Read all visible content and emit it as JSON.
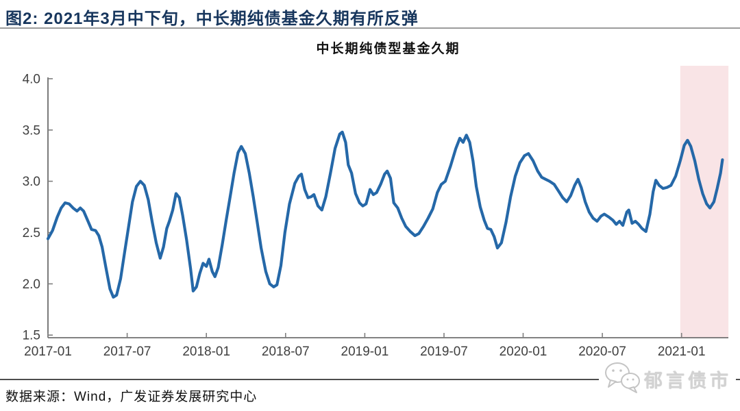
{
  "figure": {
    "caption": "图2:  2021年3月中下旬，中长期纯债基金久期有所反弹"
  },
  "colors": {
    "caption_title": "#17365d",
    "line": "#2568a8",
    "highlight": "#f9e4e6",
    "axis": "#595959",
    "tick": "#7f7f7f"
  },
  "chart_data": {
    "type": "line",
    "title": "中长期纯债型基金久期",
    "x_axis": {
      "unit": "months_since_2017-01",
      "range": [
        0,
        51.5
      ],
      "ticks": [
        {
          "m": 0,
          "label": "2017-01"
        },
        {
          "m": 6,
          "label": "2017-07"
        },
        {
          "m": 12,
          "label": "2018-01"
        },
        {
          "m": 18,
          "label": "2018-07"
        },
        {
          "m": 24,
          "label": "2019-01"
        },
        {
          "m": 30,
          "label": "2019-07"
        },
        {
          "m": 36,
          "label": "2020-01"
        },
        {
          "m": 42,
          "label": "2020-07"
        },
        {
          "m": 48,
          "label": "2021-01"
        }
      ]
    },
    "y_axis": {
      "range": [
        1.5,
        4.0
      ],
      "ticks": [
        {
          "value": 4.0,
          "label": "4.0"
        },
        {
          "value": 3.5,
          "label": "3.5"
        },
        {
          "value": 3.0,
          "label": "3.0"
        },
        {
          "value": 2.5,
          "label": "2.5"
        },
        {
          "value": 2.0,
          "label": "2.0"
        },
        {
          "value": 1.5,
          "label": "1.5"
        }
      ]
    },
    "highlight": {
      "m_start": 47.9,
      "m_end": 51.55,
      "color": "#f9e4e6",
      "meaning": "2021年1月以来区间"
    },
    "series": [
      {
        "name": "中长期纯债型基金久期",
        "color": "#2568a8",
        "points": [
          [
            0,
            2.44
          ],
          [
            0.35,
            2.52
          ],
          [
            0.7,
            2.65
          ],
          [
            1.0,
            2.74
          ],
          [
            1.3,
            2.79
          ],
          [
            1.6,
            2.78
          ],
          [
            1.9,
            2.74
          ],
          [
            2.2,
            2.71
          ],
          [
            2.45,
            2.74
          ],
          [
            2.7,
            2.71
          ],
          [
            3.0,
            2.62
          ],
          [
            3.3,
            2.53
          ],
          [
            3.6,
            2.52
          ],
          [
            3.85,
            2.47
          ],
          [
            4.1,
            2.36
          ],
          [
            4.4,
            2.15
          ],
          [
            4.7,
            1.95
          ],
          [
            4.95,
            1.87
          ],
          [
            5.2,
            1.89
          ],
          [
            5.5,
            2.05
          ],
          [
            5.8,
            2.3
          ],
          [
            6.1,
            2.55
          ],
          [
            6.4,
            2.8
          ],
          [
            6.7,
            2.95
          ],
          [
            7.0,
            3.0
          ],
          [
            7.3,
            2.96
          ],
          [
            7.6,
            2.82
          ],
          [
            7.9,
            2.6
          ],
          [
            8.2,
            2.4
          ],
          [
            8.5,
            2.25
          ],
          [
            8.75,
            2.36
          ],
          [
            9.0,
            2.54
          ],
          [
            9.2,
            2.61
          ],
          [
            9.45,
            2.72
          ],
          [
            9.7,
            2.88
          ],
          [
            9.95,
            2.84
          ],
          [
            10.2,
            2.67
          ],
          [
            10.5,
            2.43
          ],
          [
            10.8,
            2.15
          ],
          [
            11.0,
            1.93
          ],
          [
            11.25,
            1.97
          ],
          [
            11.5,
            2.1
          ],
          [
            11.75,
            2.2
          ],
          [
            12.0,
            2.17
          ],
          [
            12.2,
            2.24
          ],
          [
            12.45,
            2.12
          ],
          [
            12.65,
            2.07
          ],
          [
            12.9,
            2.16
          ],
          [
            13.2,
            2.38
          ],
          [
            13.5,
            2.62
          ],
          [
            13.8,
            2.85
          ],
          [
            14.1,
            3.08
          ],
          [
            14.4,
            3.28
          ],
          [
            14.65,
            3.34
          ],
          [
            14.95,
            3.27
          ],
          [
            15.25,
            3.08
          ],
          [
            15.55,
            2.85
          ],
          [
            15.85,
            2.6
          ],
          [
            16.15,
            2.35
          ],
          [
            16.5,
            2.12
          ],
          [
            16.8,
            2.0
          ],
          [
            17.1,
            1.97
          ],
          [
            17.35,
            1.99
          ],
          [
            17.65,
            2.18
          ],
          [
            17.95,
            2.5
          ],
          [
            18.3,
            2.78
          ],
          [
            18.7,
            2.98
          ],
          [
            19.0,
            3.05
          ],
          [
            19.2,
            3.07
          ],
          [
            19.45,
            2.92
          ],
          [
            19.7,
            2.84
          ],
          [
            19.95,
            2.85
          ],
          [
            20.15,
            2.87
          ],
          [
            20.45,
            2.76
          ],
          [
            20.75,
            2.72
          ],
          [
            21.05,
            2.85
          ],
          [
            21.4,
            3.08
          ],
          [
            21.75,
            3.32
          ],
          [
            22.1,
            3.46
          ],
          [
            22.3,
            3.48
          ],
          [
            22.55,
            3.38
          ],
          [
            22.75,
            3.16
          ],
          [
            23.0,
            3.08
          ],
          [
            23.3,
            2.88
          ],
          [
            23.6,
            2.79
          ],
          [
            23.85,
            2.76
          ],
          [
            24.1,
            2.78
          ],
          [
            24.4,
            2.92
          ],
          [
            24.65,
            2.87
          ],
          [
            24.9,
            2.89
          ],
          [
            25.2,
            2.97
          ],
          [
            25.5,
            3.07
          ],
          [
            25.7,
            3.1
          ],
          [
            25.95,
            3.03
          ],
          [
            26.2,
            2.79
          ],
          [
            26.5,
            2.74
          ],
          [
            26.8,
            2.64
          ],
          [
            27.1,
            2.56
          ],
          [
            27.45,
            2.51
          ],
          [
            27.8,
            2.47
          ],
          [
            28.1,
            2.49
          ],
          [
            28.45,
            2.56
          ],
          [
            28.8,
            2.64
          ],
          [
            29.15,
            2.73
          ],
          [
            29.5,
            2.89
          ],
          [
            29.8,
            2.97
          ],
          [
            30.1,
            3.0
          ],
          [
            30.5,
            3.15
          ],
          [
            30.9,
            3.32
          ],
          [
            31.2,
            3.42
          ],
          [
            31.45,
            3.38
          ],
          [
            31.7,
            3.45
          ],
          [
            31.95,
            3.38
          ],
          [
            32.2,
            3.2
          ],
          [
            32.45,
            2.95
          ],
          [
            32.75,
            2.75
          ],
          [
            33.05,
            2.62
          ],
          [
            33.3,
            2.54
          ],
          [
            33.55,
            2.53
          ],
          [
            33.8,
            2.46
          ],
          [
            34.05,
            2.35
          ],
          [
            34.35,
            2.4
          ],
          [
            34.7,
            2.6
          ],
          [
            35.05,
            2.85
          ],
          [
            35.4,
            3.05
          ],
          [
            35.75,
            3.18
          ],
          [
            36.1,
            3.25
          ],
          [
            36.4,
            3.27
          ],
          [
            36.75,
            3.2
          ],
          [
            37.1,
            3.1
          ],
          [
            37.4,
            3.04
          ],
          [
            37.7,
            3.02
          ],
          [
            38.0,
            3.0
          ],
          [
            38.35,
            2.97
          ],
          [
            38.7,
            2.9
          ],
          [
            39.0,
            2.84
          ],
          [
            39.3,
            2.8
          ],
          [
            39.6,
            2.86
          ],
          [
            39.9,
            2.96
          ],
          [
            40.15,
            3.02
          ],
          [
            40.4,
            2.94
          ],
          [
            40.7,
            2.8
          ],
          [
            41.0,
            2.7
          ],
          [
            41.3,
            2.64
          ],
          [
            41.6,
            2.61
          ],
          [
            41.9,
            2.66
          ],
          [
            42.15,
            2.68
          ],
          [
            42.5,
            2.65
          ],
          [
            42.8,
            2.62
          ],
          [
            43.05,
            2.58
          ],
          [
            43.3,
            2.61
          ],
          [
            43.55,
            2.57
          ],
          [
            43.85,
            2.7
          ],
          [
            44.0,
            2.72
          ],
          [
            44.25,
            2.59
          ],
          [
            44.5,
            2.61
          ],
          [
            44.75,
            2.58
          ],
          [
            45.0,
            2.54
          ],
          [
            45.3,
            2.51
          ],
          [
            45.6,
            2.68
          ],
          [
            45.85,
            2.9
          ],
          [
            46.05,
            3.01
          ],
          [
            46.3,
            2.96
          ],
          [
            46.6,
            2.93
          ],
          [
            46.9,
            2.94
          ],
          [
            47.2,
            2.96
          ],
          [
            47.55,
            3.05
          ],
          [
            47.9,
            3.2
          ],
          [
            48.2,
            3.35
          ],
          [
            48.45,
            3.4
          ],
          [
            48.7,
            3.34
          ],
          [
            49.0,
            3.2
          ],
          [
            49.3,
            3.02
          ],
          [
            49.6,
            2.88
          ],
          [
            49.9,
            2.78
          ],
          [
            50.15,
            2.74
          ],
          [
            50.45,
            2.8
          ],
          [
            50.7,
            2.93
          ],
          [
            50.95,
            3.08
          ],
          [
            51.1,
            3.21
          ]
        ]
      }
    ]
  },
  "footer": {
    "source": "数据来源：Wind，广发证券发展研究中心"
  },
  "watermark": {
    "label": "郁言债市"
  }
}
